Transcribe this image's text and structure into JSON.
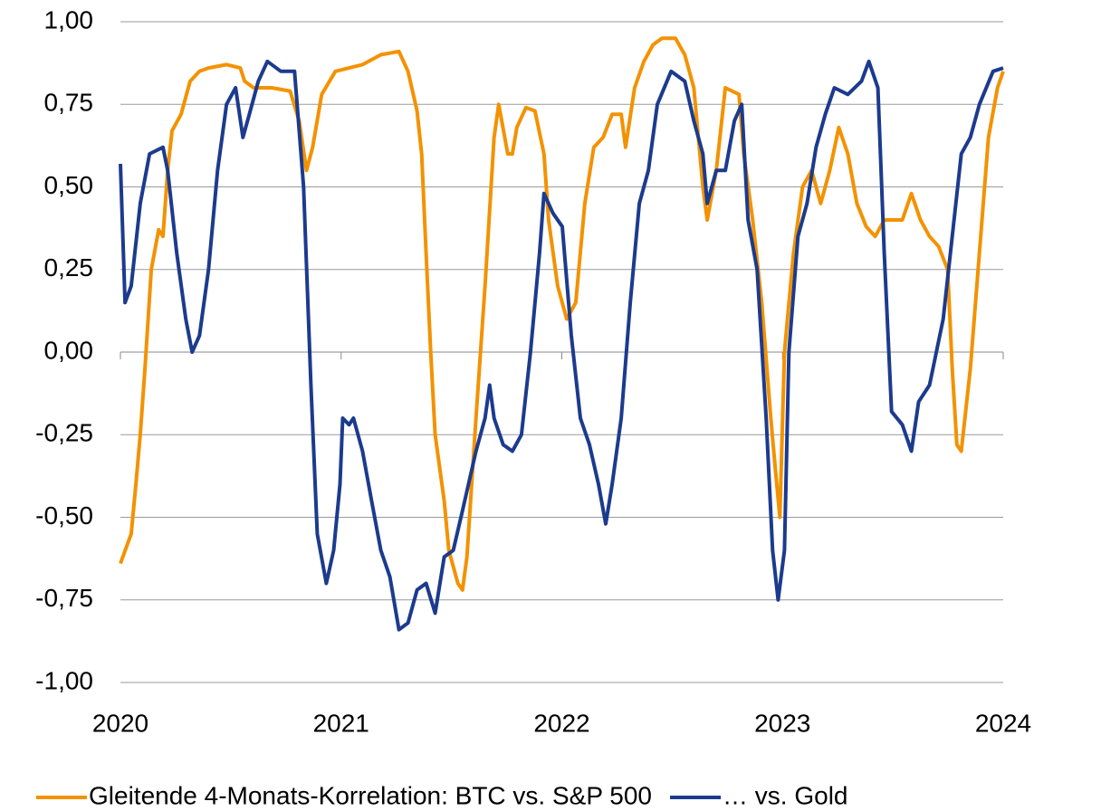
{
  "chart_data": {
    "type": "line",
    "xlim": [
      2020,
      2024
    ],
    "xticks": [
      2020,
      2021,
      2022,
      2023,
      2024
    ],
    "ylim": [
      -1,
      1
    ],
    "yticks": [
      {
        "value": -1,
        "label": "-1,00"
      },
      {
        "value": -0.75,
        "label": "-0,75"
      },
      {
        "value": -0.5,
        "label": "-0,50"
      },
      {
        "value": -0.25,
        "label": "-0,25"
      },
      {
        "value": 0,
        "label": "0,00"
      },
      {
        "value": 0.25,
        "label": "0,25"
      },
      {
        "value": 0.5,
        "label": "0,50"
      },
      {
        "value": 0.75,
        "label": "0,75"
      },
      {
        "value": 1,
        "label": "1,00"
      }
    ],
    "grid": true,
    "legend": "bottom",
    "series": [
      {
        "name": "Gleitende 4-Monats-Korrelation: BTC vs. S&P 500",
        "color": "#f39200",
        "x": [
          2020.0,
          2020.049,
          2020.07,
          2020.09,
          2020.111,
          2020.14,
          2020.173,
          2020.193,
          2020.214,
          2020.234,
          2020.275,
          2020.316,
          2020.358,
          2020.399,
          2020.481,
          2020.543,
          2020.563,
          2020.604,
          2020.686,
          2020.769,
          2020.81,
          2020.843,
          2020.871,
          2020.912,
          2020.974,
          2021.036,
          2021.097,
          2021.18,
          2021.262,
          2021.303,
          2021.344,
          2021.365,
          2021.385,
          2021.406,
          2021.426,
          2021.467,
          2021.488,
          2021.529,
          2021.55,
          2021.57,
          2021.611,
          2021.652,
          2021.693,
          2021.714,
          2021.755,
          2021.776,
          2021.796,
          2021.837,
          2021.878,
          2021.919,
          2021.94,
          2021.981,
          2022.022,
          2022.063,
          2022.104,
          2022.145,
          2022.187,
          2022.228,
          2022.269,
          2022.289,
          2022.33,
          2022.372,
          2022.413,
          2022.454,
          2022.515,
          2022.557,
          2022.598,
          2022.639,
          2022.659,
          2022.7,
          2022.741,
          2022.803,
          2022.824,
          2022.865,
          2022.906,
          2022.947,
          2022.967,
          2022.988,
          2023.009,
          2023.05,
          2023.091,
          2023.132,
          2023.173,
          2023.214,
          2023.255,
          2023.296,
          2023.337,
          2023.379,
          2023.42,
          2023.461,
          2023.502,
          2023.543,
          2023.584,
          2023.625,
          2023.666,
          2023.707,
          2023.748,
          2023.769,
          2023.79,
          2023.81,
          2023.851,
          2023.892,
          2023.933,
          2023.974,
          2024.0
        ],
        "values": [
          -0.64,
          -0.55,
          -0.4,
          -0.25,
          -0.05,
          0.25,
          0.37,
          0.35,
          0.55,
          0.67,
          0.72,
          0.82,
          0.85,
          0.86,
          0.87,
          0.86,
          0.82,
          0.8,
          0.8,
          0.79,
          0.7,
          0.55,
          0.62,
          0.78,
          0.85,
          0.86,
          0.87,
          0.9,
          0.91,
          0.85,
          0.73,
          0.6,
          0.3,
          0.0,
          -0.25,
          -0.45,
          -0.6,
          -0.7,
          -0.72,
          -0.62,
          -0.2,
          0.2,
          0.65,
          0.75,
          0.6,
          0.6,
          0.68,
          0.74,
          0.73,
          0.6,
          0.4,
          0.2,
          0.1,
          0.15,
          0.45,
          0.62,
          0.65,
          0.72,
          0.72,
          0.62,
          0.8,
          0.88,
          0.93,
          0.95,
          0.95,
          0.9,
          0.8,
          0.5,
          0.4,
          0.55,
          0.8,
          0.78,
          0.6,
          0.4,
          0.15,
          -0.2,
          -0.35,
          -0.5,
          0.0,
          0.3,
          0.5,
          0.55,
          0.45,
          0.55,
          0.68,
          0.6,
          0.45,
          0.38,
          0.35,
          0.4,
          0.4,
          0.4,
          0.48,
          0.4,
          0.35,
          0.32,
          0.25,
          -0.05,
          -0.28,
          -0.3,
          -0.05,
          0.3,
          0.65,
          0.8,
          0.85
        ]
      },
      {
        "name": "… vs. Gold",
        "color": "#1c3b8e",
        "x": [
          2020.0,
          2020.021,
          2020.049,
          2020.09,
          2020.132,
          2020.193,
          2020.214,
          2020.255,
          2020.296,
          2020.325,
          2020.358,
          2020.399,
          2020.44,
          2020.481,
          2020.522,
          2020.555,
          2020.584,
          2020.625,
          2020.666,
          2020.727,
          2020.789,
          2020.83,
          2020.863,
          2020.892,
          2020.933,
          2020.966,
          2020.995,
          2021.007,
          2021.036,
          2021.056,
          2021.097,
          2021.138,
          2021.18,
          2021.221,
          2021.262,
          2021.303,
          2021.344,
          2021.385,
          2021.426,
          2021.467,
          2021.508,
          2021.55,
          2021.611,
          2021.652,
          2021.673,
          2021.693,
          2021.734,
          2021.776,
          2021.817,
          2021.858,
          2021.899,
          2021.919,
          2021.96,
          2022.002,
          2022.043,
          2022.084,
          2022.125,
          2022.166,
          2022.199,
          2022.228,
          2022.269,
          2022.31,
          2022.351,
          2022.392,
          2022.433,
          2022.495,
          2022.557,
          2022.598,
          2022.639,
          2022.659,
          2022.7,
          2022.741,
          2022.782,
          2022.815,
          2022.844,
          2022.885,
          2022.926,
          2022.955,
          2022.98,
          2023.009,
          2023.029,
          2023.07,
          2023.111,
          2023.152,
          2023.194,
          2023.235,
          2023.296,
          2023.358,
          2023.391,
          2023.432,
          2023.461,
          2023.494,
          2023.543,
          2023.584,
          2023.617,
          2023.666,
          2023.728,
          2023.769,
          2023.81,
          2023.851,
          2023.892,
          2023.954,
          2024.0
        ],
        "values": [
          0.57,
          0.15,
          0.2,
          0.45,
          0.6,
          0.62,
          0.55,
          0.3,
          0.1,
          0.0,
          0.05,
          0.25,
          0.55,
          0.75,
          0.8,
          0.65,
          0.72,
          0.82,
          0.88,
          0.85,
          0.85,
          0.5,
          -0.1,
          -0.55,
          -0.7,
          -0.6,
          -0.4,
          -0.2,
          -0.22,
          -0.2,
          -0.3,
          -0.45,
          -0.6,
          -0.68,
          -0.84,
          -0.82,
          -0.72,
          -0.7,
          -0.79,
          -0.62,
          -0.6,
          -0.48,
          -0.3,
          -0.2,
          -0.1,
          -0.2,
          -0.28,
          -0.3,
          -0.25,
          0.0,
          0.3,
          0.48,
          0.42,
          0.38,
          0.05,
          -0.2,
          -0.28,
          -0.4,
          -0.52,
          -0.4,
          -0.2,
          0.15,
          0.45,
          0.55,
          0.75,
          0.85,
          0.82,
          0.7,
          0.6,
          0.45,
          0.55,
          0.55,
          0.7,
          0.75,
          0.4,
          0.25,
          -0.2,
          -0.6,
          -0.75,
          -0.6,
          0.0,
          0.35,
          0.45,
          0.62,
          0.72,
          0.8,
          0.78,
          0.82,
          0.88,
          0.8,
          0.3,
          -0.18,
          -0.22,
          -0.3,
          -0.15,
          -0.1,
          0.1,
          0.35,
          0.6,
          0.65,
          0.75,
          0.85,
          0.86
        ]
      }
    ]
  }
}
